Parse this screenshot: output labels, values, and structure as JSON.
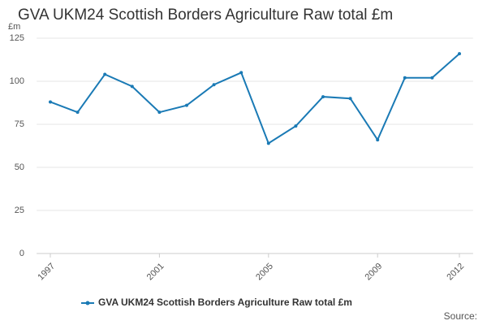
{
  "chart_data": {
    "type": "line",
    "title": "GVA UKM24 Scottish Borders Agriculture Raw total £m",
    "y_label": "£m",
    "x": [
      1997,
      1998,
      1999,
      2000,
      2001,
      2002,
      2003,
      2004,
      2005,
      2006,
      2007,
      2008,
      2009,
      2010,
      2011,
      2012
    ],
    "series": [
      {
        "name": "GVA UKM24 Scottish Borders Agriculture Raw total £m",
        "color": "#1a7ab5",
        "values": [
          88,
          82,
          104,
          97,
          82,
          86,
          98,
          105,
          64,
          74,
          91,
          90,
          66,
          102,
          102,
          116
        ]
      }
    ],
    "xlim": [
      1996.5,
      2012.5
    ],
    "xticks": [
      1997,
      2001,
      2005,
      2009,
      2012
    ],
    "ylim": [
      0,
      125
    ],
    "yticks": [
      0,
      25,
      50,
      75,
      100,
      125
    ],
    "grid": true,
    "legend": "bottom",
    "source": "Source:"
  }
}
